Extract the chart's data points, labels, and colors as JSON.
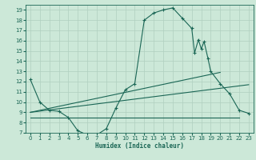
{
  "xlabel": "Humidex (Indice chaleur)",
  "bg_color": "#cce8d8",
  "grid_color": "#b0cfbf",
  "line_color": "#1a6655",
  "xlim": [
    -0.5,
    23.5
  ],
  "ylim": [
    7,
    19.5
  ],
  "xticks": [
    0,
    1,
    2,
    3,
    4,
    5,
    6,
    7,
    8,
    9,
    10,
    11,
    12,
    13,
    14,
    15,
    16,
    17,
    18,
    19,
    20,
    21,
    22,
    23
  ],
  "yticks": [
    7,
    8,
    9,
    10,
    11,
    12,
    13,
    14,
    15,
    16,
    17,
    18,
    19
  ],
  "curve1_x": [
    0,
    1,
    2,
    3,
    4,
    5,
    6,
    7,
    8,
    9,
    10,
    11,
    12,
    13,
    14,
    15,
    16,
    17,
    17.3,
    17.7,
    18.0,
    18.3,
    18.7,
    19,
    20,
    21,
    22,
    23
  ],
  "curve1_y": [
    12.2,
    10.0,
    9.2,
    9.1,
    8.5,
    7.2,
    6.8,
    6.8,
    7.4,
    9.4,
    11.2,
    11.8,
    18.0,
    18.7,
    19.0,
    19.2,
    18.2,
    17.2,
    14.8,
    16.1,
    15.2,
    15.9,
    14.3,
    13.0,
    11.8,
    10.8,
    9.2,
    8.9
  ],
  "line2_x": [
    0,
    20
  ],
  "line2_y": [
    9.0,
    12.9
  ],
  "line3_x": [
    0,
    23
  ],
  "line3_y": [
    9.0,
    11.7
  ],
  "line4_x": [
    0,
    22
  ],
  "line4_y": [
    8.5,
    8.5
  ],
  "curve1_marker_x": [
    0,
    1,
    2,
    3,
    4,
    5,
    6,
    7,
    8,
    9,
    10,
    11,
    12,
    13,
    14,
    15,
    16,
    17,
    18.3,
    19,
    20,
    21,
    22,
    23
  ]
}
